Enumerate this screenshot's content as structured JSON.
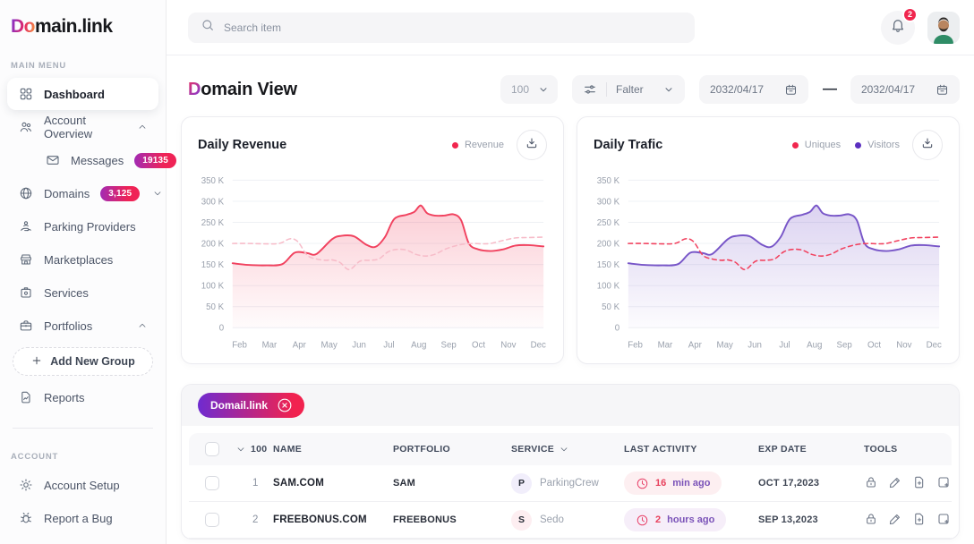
{
  "logo": {
    "accent": "Do",
    "rest": "main.link"
  },
  "topbar": {
    "search_placeholder": "Search item",
    "notifications_count": "2"
  },
  "sidebar": {
    "sections": [
      {
        "label": "MAIN MENU",
        "items": [
          {
            "id": "dashboard",
            "label": "Dashboard",
            "icon": "dashboard",
            "active": true
          },
          {
            "id": "account-overview",
            "label": "Account Overview",
            "icon": "users",
            "chevron": "up"
          },
          {
            "id": "messages",
            "label": "Messages",
            "icon": "envelope",
            "badge": "19135",
            "indent": true
          },
          {
            "id": "domains",
            "label": "Domains",
            "icon": "globe",
            "badge": "3,125",
            "chevron": "down",
            "chevron_inline": true
          },
          {
            "id": "parking-providers",
            "label": "Parking Providers",
            "icon": "parking"
          },
          {
            "id": "marketplaces",
            "label": "Marketplaces",
            "icon": "store"
          },
          {
            "id": "services",
            "label": "Services",
            "icon": "services"
          },
          {
            "id": "portfolios",
            "label": "Portfolios",
            "icon": "briefcase",
            "chevron": "up"
          },
          {
            "id": "add-new-group",
            "label": "Add New Group",
            "icon": "plus",
            "type": "dashed"
          },
          {
            "id": "reports",
            "label": "Reports",
            "icon": "report"
          }
        ]
      },
      {
        "label": "ACCOUNT",
        "divider": true,
        "items": [
          {
            "id": "account-setup",
            "label": "Account Setup",
            "icon": "gear"
          },
          {
            "id": "report-a-bug",
            "label": "Report a Bug",
            "icon": "bug"
          }
        ]
      }
    ]
  },
  "page": {
    "title_accent": "D",
    "title_rest": "omain View",
    "per_page": "100",
    "filter_label": "Falter",
    "date_from": "2032/04/17",
    "date_to": "2032/04/17",
    "range_dash": "—"
  },
  "chart_data": [
    {
      "type": "area",
      "title": "Daily Revenue",
      "categories": [
        "Feb",
        "Mar",
        "Apr",
        "May",
        "Jun",
        "Jul",
        "Aug",
        "Sep",
        "Oct",
        "Nov",
        "Dec"
      ],
      "y_ticks": [
        "350 K",
        "300 K",
        "250 K",
        "200 K",
        "150 K",
        "100 K",
        "50 K",
        "0"
      ],
      "ylim": [
        0,
        350
      ],
      "unit": "K",
      "legend": [
        {
          "name": "Revenue",
          "color": "#F1264E"
        }
      ],
      "series": [
        {
          "name": "Revenue",
          "style": "solid",
          "color": "#F1425F",
          "fill": true,
          "values": [
            149,
            155,
            176,
            212,
            215,
            192,
            272,
            267,
            195,
            182,
            193
          ],
          "points": [
            [
              0,
              153
            ],
            [
              0.05,
              149
            ],
            [
              0.11,
              148
            ],
            [
              0.16,
              151
            ],
            [
              0.2,
              178
            ],
            [
              0.24,
              177
            ],
            [
              0.27,
              175
            ],
            [
              0.32,
              210
            ],
            [
              0.35,
              218
            ],
            [
              0.39,
              217
            ],
            [
              0.43,
              197
            ],
            [
              0.46,
              192
            ],
            [
              0.49,
              215
            ],
            [
              0.52,
              258
            ],
            [
              0.56,
              268
            ],
            [
              0.585,
              275
            ],
            [
              0.605,
              290
            ],
            [
              0.625,
              272
            ],
            [
              0.65,
              266
            ],
            [
              0.68,
              266
            ],
            [
              0.71,
              269
            ],
            [
              0.735,
              255
            ],
            [
              0.76,
              200
            ],
            [
              0.79,
              186
            ],
            [
              0.83,
              182
            ],
            [
              0.87,
              186
            ],
            [
              0.91,
              195
            ],
            [
              0.95,
              196
            ],
            [
              1,
              193
            ]
          ]
        },
        {
          "name": "Revenue (previous)",
          "style": "dashed",
          "color": "#F7BCC9",
          "fill": false,
          "values": [
            200,
            201,
            170,
            157,
            160,
            186,
            171,
            196,
            199,
            207,
            215
          ],
          "points": [
            [
              0,
              200
            ],
            [
              0.05,
              200
            ],
            [
              0.1,
              199
            ],
            [
              0.15,
              200
            ],
            [
              0.185,
              211
            ],
            [
              0.21,
              204
            ],
            [
              0.24,
              172
            ],
            [
              0.27,
              163
            ],
            [
              0.3,
              160
            ],
            [
              0.32,
              161
            ],
            [
              0.345,
              155
            ],
            [
              0.375,
              138
            ],
            [
              0.41,
              158
            ],
            [
              0.44,
              160
            ],
            [
              0.47,
              163
            ],
            [
              0.5,
              180
            ],
            [
              0.53,
              186
            ],
            [
              0.56,
              184
            ],
            [
              0.59,
              174
            ],
            [
              0.62,
              170
            ],
            [
              0.65,
              174
            ],
            [
              0.68,
              185
            ],
            [
              0.71,
              193
            ],
            [
              0.74,
              198
            ],
            [
              0.77,
              200
            ],
            [
              0.8,
              199
            ],
            [
              0.83,
              200
            ],
            [
              0.87,
              207
            ],
            [
              0.91,
              213
            ],
            [
              0.95,
              214
            ],
            [
              1,
              215
            ]
          ]
        }
      ]
    },
    {
      "type": "area",
      "title": "Daily Trafic",
      "categories": [
        "Feb",
        "Mar",
        "Apr",
        "May",
        "Jun",
        "Jul",
        "Aug",
        "Sep",
        "Oct",
        "Nov",
        "Dec"
      ],
      "y_ticks": [
        "350 K",
        "300 K",
        "250 K",
        "200 K",
        "150 K",
        "100 K",
        "50 K",
        "0"
      ],
      "ylim": [
        0,
        350
      ],
      "unit": "K",
      "legend": [
        {
          "name": "Uniques",
          "color": "#F1264E"
        },
        {
          "name": "Visitors",
          "color": "#5B2FC0"
        }
      ],
      "series": [
        {
          "name": "Visitors",
          "style": "solid",
          "color": "#7856C8",
          "fill": true,
          "values": [
            149,
            155,
            176,
            212,
            215,
            192,
            272,
            267,
            195,
            182,
            193
          ],
          "points": [
            [
              0,
              153
            ],
            [
              0.05,
              149
            ],
            [
              0.11,
              148
            ],
            [
              0.16,
              151
            ],
            [
              0.2,
              178
            ],
            [
              0.24,
              177
            ],
            [
              0.27,
              175
            ],
            [
              0.32,
              210
            ],
            [
              0.35,
              218
            ],
            [
              0.39,
              217
            ],
            [
              0.43,
              197
            ],
            [
              0.46,
              192
            ],
            [
              0.49,
              215
            ],
            [
              0.52,
              258
            ],
            [
              0.56,
              268
            ],
            [
              0.585,
              275
            ],
            [
              0.605,
              290
            ],
            [
              0.625,
              272
            ],
            [
              0.65,
              266
            ],
            [
              0.68,
              266
            ],
            [
              0.71,
              269
            ],
            [
              0.735,
              255
            ],
            [
              0.76,
              200
            ],
            [
              0.79,
              186
            ],
            [
              0.83,
              182
            ],
            [
              0.87,
              186
            ],
            [
              0.91,
              195
            ],
            [
              0.95,
              196
            ],
            [
              1,
              193
            ]
          ]
        },
        {
          "name": "Uniques",
          "style": "dashed",
          "color": "#F1425F",
          "fill": false,
          "values": [
            200,
            201,
            170,
            157,
            160,
            186,
            171,
            196,
            199,
            207,
            215
          ],
          "points": [
            [
              0,
              200
            ],
            [
              0.05,
              200
            ],
            [
              0.1,
              199
            ],
            [
              0.15,
              200
            ],
            [
              0.185,
              211
            ],
            [
              0.21,
              204
            ],
            [
              0.24,
              172
            ],
            [
              0.27,
              163
            ],
            [
              0.3,
              160
            ],
            [
              0.32,
              161
            ],
            [
              0.345,
              155
            ],
            [
              0.375,
              138
            ],
            [
              0.41,
              158
            ],
            [
              0.44,
              160
            ],
            [
              0.47,
              163
            ],
            [
              0.5,
              180
            ],
            [
              0.53,
              186
            ],
            [
              0.56,
              184
            ],
            [
              0.59,
              174
            ],
            [
              0.62,
              170
            ],
            [
              0.65,
              174
            ],
            [
              0.68,
              185
            ],
            [
              0.71,
              193
            ],
            [
              0.74,
              198
            ],
            [
              0.77,
              200
            ],
            [
              0.8,
              199
            ],
            [
              0.83,
              200
            ],
            [
              0.87,
              207
            ],
            [
              0.91,
              213
            ],
            [
              0.95,
              214
            ],
            [
              1,
              215
            ]
          ]
        }
      ]
    }
  ],
  "table": {
    "chip": "Domail.link",
    "header_count": "100",
    "columns": [
      "NAME",
      "PORTFOLIO",
      "SERVICE",
      "LAST ACTIVITY",
      "EXP DATE",
      "TOOLS"
    ],
    "rows": [
      {
        "num": "1",
        "name": "SAM.COM",
        "portfolio": "SAM",
        "service_initial": "P",
        "service": "ParkingCrew",
        "activity_value": "16",
        "activity_unit": "min ago",
        "exp_date": "OCT 17,2023"
      },
      {
        "num": "2",
        "name": "FREEBONUS.COM",
        "portfolio": "FREEBONUS",
        "service_initial": "S",
        "service": "Sedo",
        "activity_value": "2",
        "activity_unit": "hours ago",
        "exp_date": "SEP 13,2023"
      }
    ],
    "tools": [
      "lock",
      "edit",
      "file-plus",
      "note-plus"
    ]
  },
  "colors": {
    "accent_red": "#F1425F",
    "accent_purple": "#7856C8",
    "dashed_pink": "#F7BCC9",
    "badge_gradient_start": "#A22BB4",
    "badge_gradient_end": "#EF2356",
    "chip_gradient_start": "#6F2BD0",
    "chip_gradient_end": "#F1224F",
    "notification_badge": "#F0264E"
  }
}
